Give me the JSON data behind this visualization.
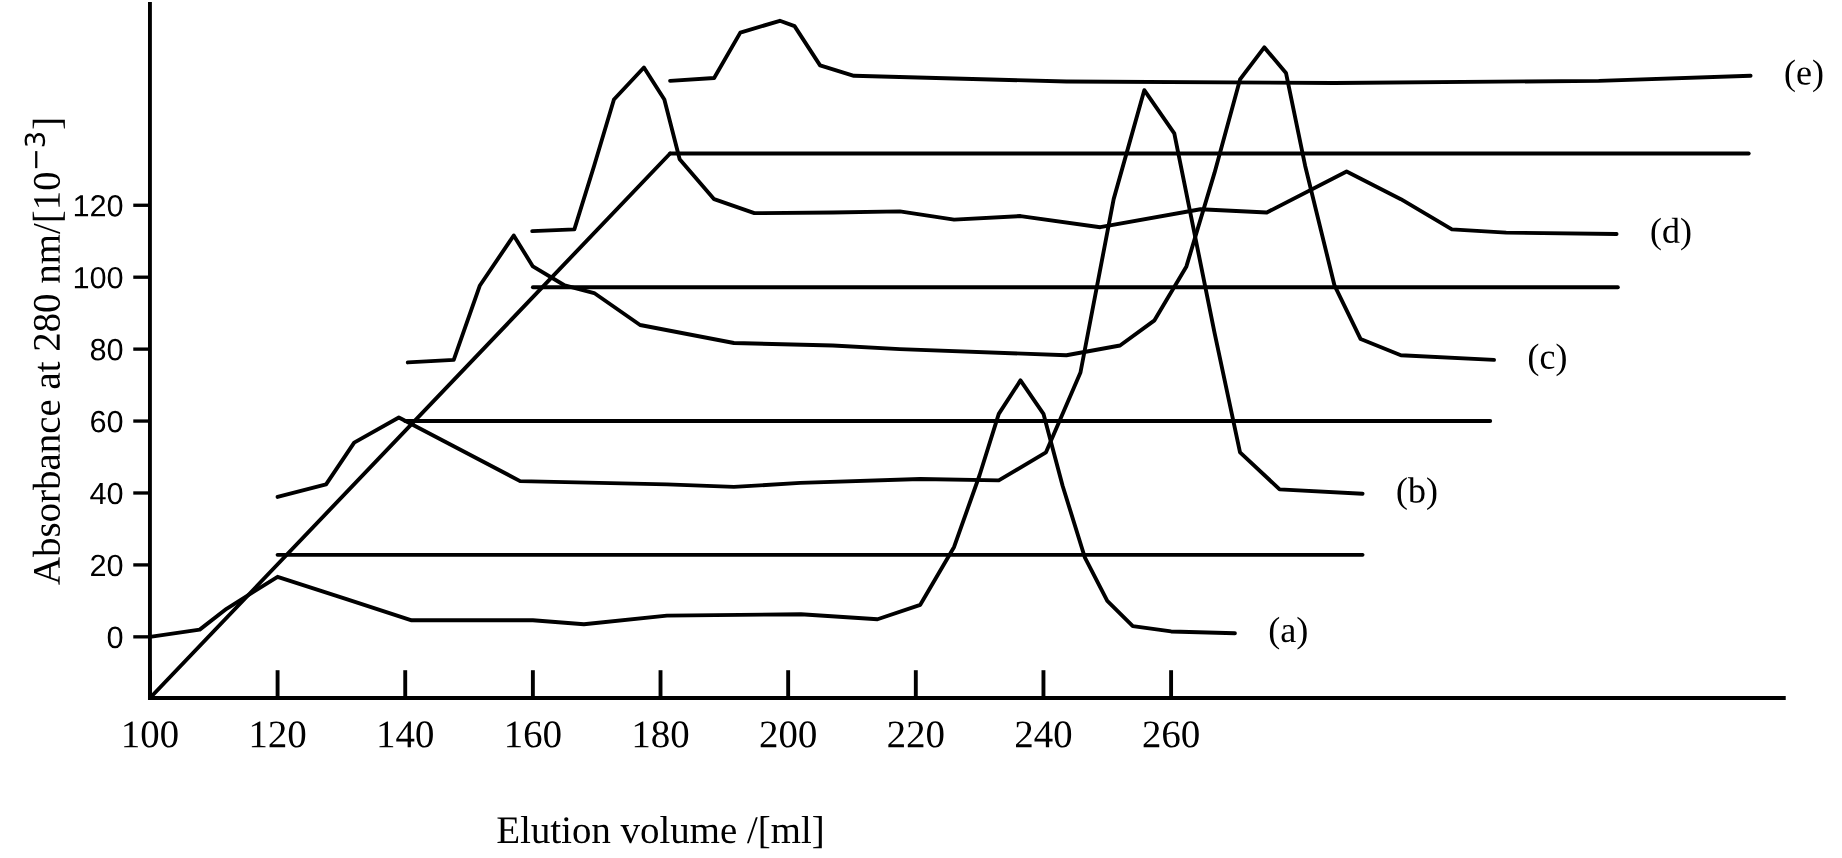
{
  "chart_data": {
    "type": "line",
    "xlabel": "Elution volume /[ml]",
    "ylabel": "Absorbance at 280 nm/[10$^{−3}$]",
    "xlim": [
      100,
      356
    ],
    "ylim": [
      -17,
      176
    ],
    "xticks": [
      100,
      120,
      140,
      160,
      180,
      200,
      220,
      240,
      260
    ],
    "yticks": [
      0,
      20,
      40,
      60,
      80,
      100,
      120
    ],
    "series": [
      {
        "name": "(a)",
        "color": "#000000",
        "x": [
          100,
          107.8,
          112,
          120,
          130.8,
          141,
          160,
          168,
          181,
          202,
          214,
          220.7,
          226,
          230,
          233,
          236.4,
          240,
          243,
          246.5,
          250,
          254,
          260,
          270
        ],
        "values": [
          0,
          2,
          7.8,
          16.7,
          10.5,
          4.6,
          4.6,
          3.5,
          5.9,
          6.3,
          4.9,
          8.9,
          25,
          45,
          62,
          71.3,
          62,
          42,
          22,
          10,
          3,
          1.5,
          1
        ]
      },
      {
        "name": "(b)",
        "color": "#000000",
        "x": [
          120,
          127.6,
          132,
          139,
          147.6,
          158,
          181,
          191.5,
          201.9,
          220.7,
          233,
          240.4,
          245.8,
          251,
          255.8,
          260.5,
          266.8,
          270.8,
          277,
          290
        ],
        "values": [
          38.9,
          42.4,
          54,
          61,
          53,
          43.3,
          42.4,
          41.7,
          42.8,
          43.9,
          43.5,
          51.3,
          73.5,
          121.7,
          152,
          140,
          84.6,
          51.3,
          41,
          39.8
        ]
      },
      {
        "name": "(c)",
        "color": "#000000",
        "x": [
          140.4,
          147.6,
          151.7,
          157,
          160,
          165,
          169.6,
          176.8,
          191.5,
          207,
          217.5,
          243.6,
          252,
          257.4,
          262.4,
          266.8,
          270.8,
          274.6,
          278,
          281,
          285.6,
          289.7,
          296,
          310.6
        ],
        "values": [
          76.3,
          77,
          97.7,
          111.6,
          103,
          97.7,
          95.6,
          86.7,
          81.7,
          81,
          80,
          78.3,
          81,
          88,
          103,
          129,
          155,
          163.9,
          156.8,
          131,
          97.7,
          82.8,
          78.3,
          77
        ]
      },
      {
        "name": "(d)",
        "color": "#000000",
        "x": [
          159.9,
          166.5,
          169.6,
          172.7,
          177.4,
          180.6,
          183,
          188.4,
          194.7,
          207,
          217.5,
          226,
          236.4,
          248.9,
          264.6,
          275,
          287.5,
          296,
          304,
          312.5,
          329.8
        ],
        "values": [
          112.8,
          113.3,
          131,
          149.4,
          158.3,
          149.4,
          132.8,
          121.7,
          117.8,
          118,
          118.3,
          116,
          117,
          113.9,
          118.9,
          118,
          129.4,
          121.7,
          113.3,
          112.4,
          112
        ]
      },
      {
        "name": "(e)",
        "color": "#000000",
        "x": [
          181.5,
          188.4,
          192.5,
          198.7,
          201,
          205,
          210.3,
          243.6,
          285.6,
          327,
          350.8
        ],
        "values": [
          154.6,
          155.4,
          168,
          171.3,
          169.8,
          158.9,
          156,
          154.4,
          154,
          154.6,
          156
        ]
      },
      {
        "color": "#000000",
        "x": [
          120,
          290
        ],
        "values": [
          22.8,
          22.8
        ]
      },
      {
        "color": "#000000",
        "x": [
          140,
          310
        ],
        "values": [
          60,
          60
        ]
      },
      {
        "color": "#000000",
        "x": [
          160,
          330
        ],
        "values": [
          97.2,
          97.2
        ]
      },
      {
        "color": "#000000",
        "x": [
          181.5,
          350.5
        ],
        "values": [
          134.4,
          134.4
        ]
      },
      {
        "color": "#000000",
        "x": [
          100,
          181.5
        ],
        "values": [
          -17,
          134.4
        ]
      }
    ]
  }
}
